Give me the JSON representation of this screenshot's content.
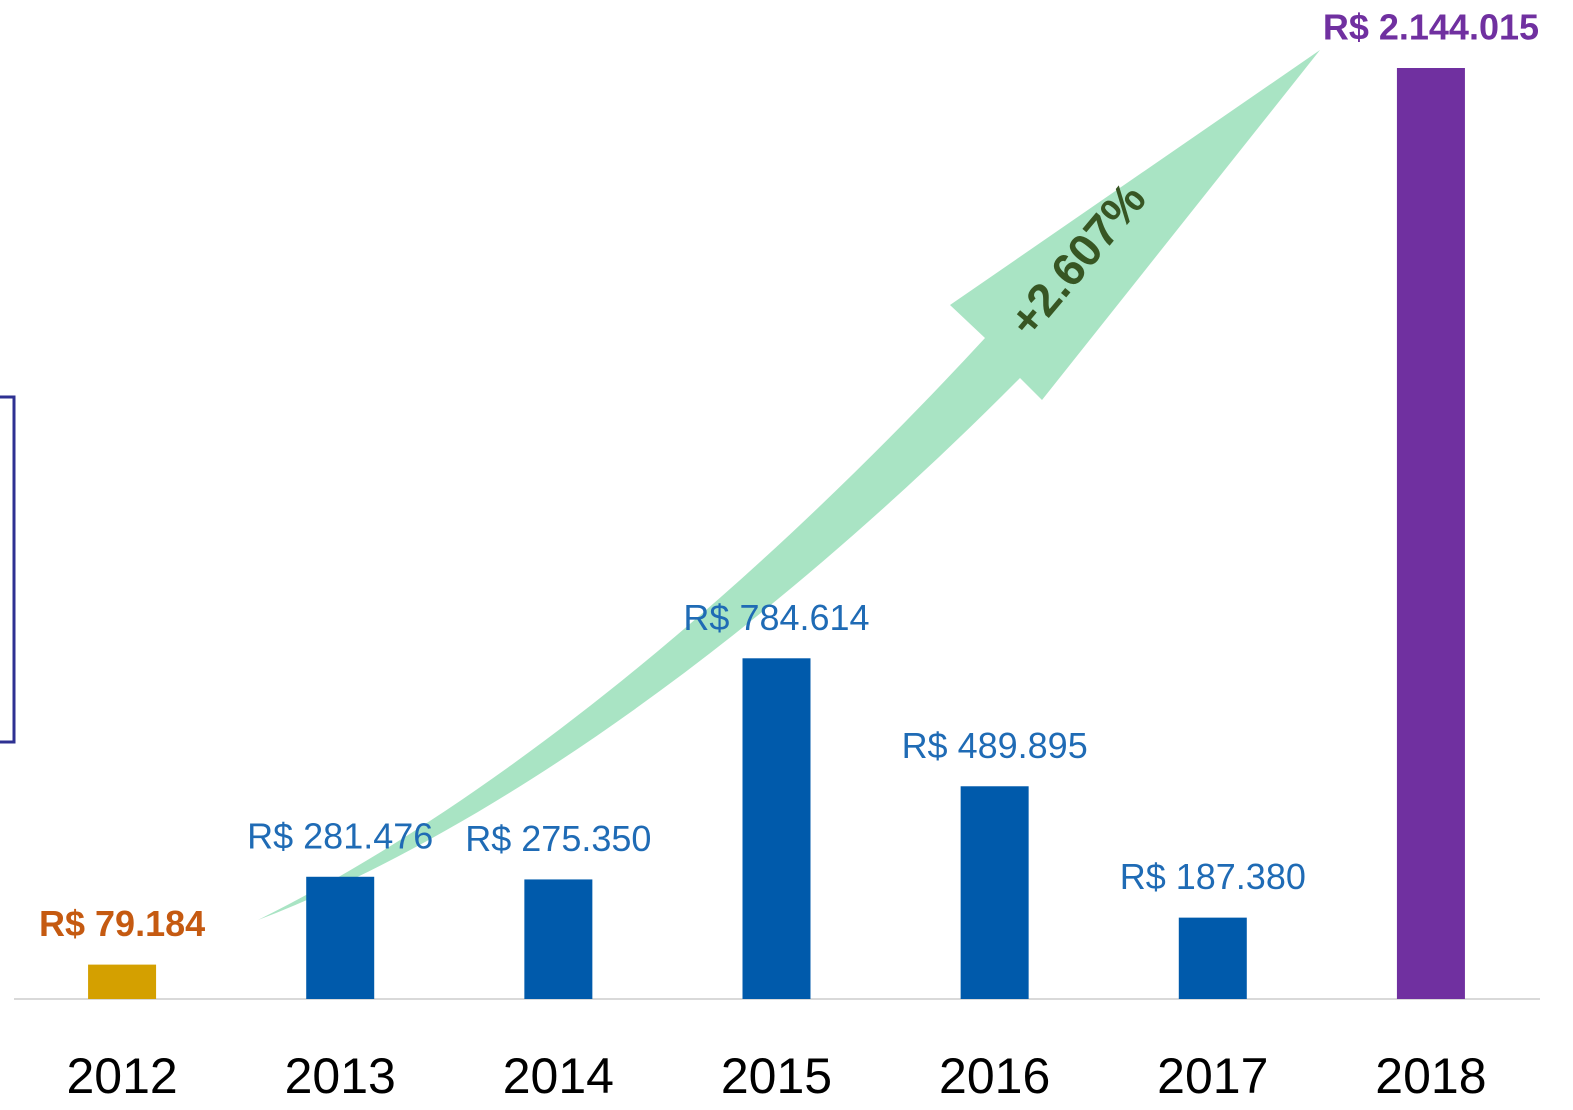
{
  "chart_data": {
    "type": "bar",
    "categories": [
      "2012",
      "2013",
      "2014",
      "2015",
      "2016",
      "2017",
      "2018"
    ],
    "values": [
      79184,
      281476,
      275350,
      784614,
      489895,
      187380,
      2144015
    ],
    "value_labels": [
      "R$ 79.184",
      "R$ 281.476",
      "R$ 275.350",
      "R$ 784.614",
      "R$ 489.895",
      "R$ 187.380",
      "R$ 2.144.015"
    ],
    "colors": [
      "#d4a000",
      "#005aab",
      "#005aab",
      "#005aab",
      "#005aab",
      "#005aab",
      "#7030a0"
    ],
    "label_colors": [
      "#c55a11",
      "#1f6bb5",
      "#1f6bb5",
      "#1f6bb5",
      "#1f6bb5",
      "#1f6bb5",
      "#7030a0"
    ],
    "label_bold": [
      true,
      false,
      false,
      false,
      false,
      false,
      true
    ],
    "annotation": "+2.607%"
  }
}
